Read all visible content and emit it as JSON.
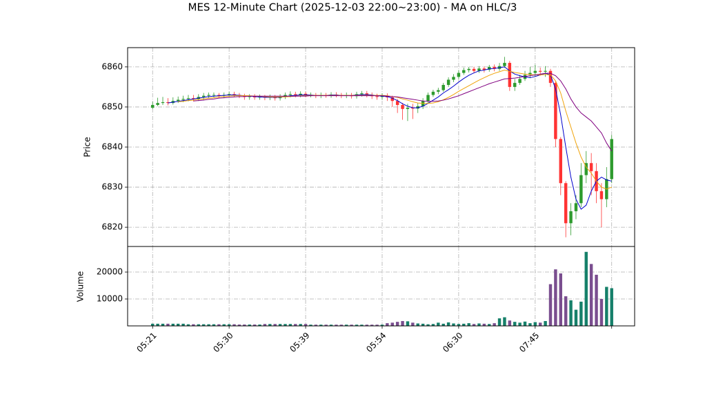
{
  "chart_data": [
    {
      "type": "candlestick",
      "title": "MES 12-Minute Chart (2025-12-03 22:00~23:00) - MA on HLC/3",
      "ylabel": "Price",
      "up_color": "#2e9b2e",
      "down_color": "#ff3333",
      "grid": true,
      "ylim": [
        6815.2,
        6864.8
      ],
      "yticks": [
        6820,
        6830,
        6840,
        6850,
        6860
      ],
      "open": [
        6849.8,
        6850.5,
        6851,
        6851.2,
        6851,
        6851.5,
        6851.8,
        6852,
        6852.2,
        6852,
        6852.5,
        6852.8,
        6853,
        6853,
        6852.8,
        6853,
        6853.2,
        6853,
        6852.8,
        6852.5,
        6852.6,
        6852.4,
        6852.5,
        6852.3,
        6852.5,
        6852.2,
        6852.6,
        6853,
        6853.2,
        6853,
        6853.3,
        6853,
        6853,
        6852.8,
        6853,
        6852.9,
        6853.1,
        6853,
        6852.8,
        6853,
        6852.7,
        6853.2,
        6853.4,
        6853,
        6852.7,
        6852.5,
        6852.8,
        6852.4,
        6851.5,
        6850.5,
        6849.5,
        6849.8,
        6849.6,
        6850.2,
        6851.5,
        6853,
        6853.8,
        6854.2,
        6855.5,
        6856.8,
        6857.5,
        6858.5,
        6859.2,
        6859.5,
        6859,
        6859.6,
        6859.3,
        6860,
        6859.5,
        6860.2,
        6861,
        6855,
        6856,
        6857,
        6858,
        6858.5,
        6859,
        6858.8,
        6859,
        6856,
        6842,
        6831,
        6821,
        6824,
        6826,
        6833,
        6836,
        6834,
        6829,
        6827,
        6832
      ],
      "high": [
        6851.3,
        6852.3,
        6852.5,
        6852.2,
        6852.4,
        6852.6,
        6852.8,
        6853,
        6853,
        6853.2,
        6853.5,
        6853.6,
        6853.6,
        6853.5,
        6853.6,
        6853.8,
        6853.8,
        6853.5,
        6853.3,
        6853.2,
        6853.2,
        6853.1,
        6853,
        6853.1,
        6853,
        6853.2,
        6853.6,
        6853.9,
        6853.8,
        6853.9,
        6853.8,
        6853.6,
        6853.5,
        6853.6,
        6853.5,
        6853.7,
        6853.7,
        6853.5,
        6853.6,
        6853.5,
        6853.8,
        6854,
        6854,
        6853.6,
        6853.3,
        6853.4,
        6853.4,
        6852.8,
        6852,
        6851,
        6850.8,
        6850.8,
        6851,
        6852.2,
        6853.6,
        6854.3,
        6854.8,
        6856,
        6857.4,
        6858.2,
        6859.2,
        6859.8,
        6860,
        6860,
        6860.2,
        6860.1,
        6860.5,
        6860.6,
        6861,
        6862.5,
        6861.5,
        6857,
        6858,
        6859,
        6860,
        6860.5,
        6859.8,
        6860.2,
        6859.5,
        6856.5,
        6842.5,
        6831.5,
        6826,
        6828,
        6836,
        6839,
        6838.5,
        6836,
        6831,
        6835,
        6843
      ],
      "low": [
        6849.5,
        6850.2,
        6850.5,
        6850.4,
        6850.6,
        6851,
        6851.2,
        6851.4,
        6851.4,
        6851.5,
        6851.8,
        6852.2,
        6852.4,
        6852.2,
        6852.2,
        6852.5,
        6852.4,
        6852.2,
        6851.8,
        6851.8,
        6851.8,
        6851.8,
        6851.7,
        6851.7,
        6851.6,
        6851.6,
        6852,
        6852.4,
        6852.4,
        6852.4,
        6852.4,
        6852.4,
        6852.2,
        6852.2,
        6852.3,
        6852.3,
        6852.4,
        6852.2,
        6852.2,
        6852.1,
        6852.1,
        6852.6,
        6852.4,
        6852,
        6851.8,
        6851.8,
        6851.5,
        6850,
        6848.5,
        6846.8,
        6846.5,
        6847,
        6848.5,
        6849.5,
        6851,
        6852.5,
        6853.2,
        6853.8,
        6855,
        6856.2,
        6857,
        6858,
        6858.6,
        6858.4,
        6858.5,
        6858.6,
        6858.8,
        6858.9,
        6859,
        6859.8,
        6854,
        6854,
        6855.5,
        6856.5,
        6857.2,
        6857.5,
        6857.8,
        6857.5,
        6855,
        6840,
        6828,
        6817.5,
        6818,
        6822,
        6825,
        6831,
        6828,
        6826,
        6820,
        6825,
        6831
      ],
      "close": [
        6850.5,
        6851,
        6851.2,
        6851,
        6851.5,
        6851.8,
        6852,
        6852.2,
        6852,
        6852.5,
        6852.8,
        6853,
        6853,
        6852.8,
        6853,
        6853.2,
        6853,
        6852.8,
        6852.5,
        6852.6,
        6852.4,
        6852.5,
        6852.3,
        6852.5,
        6852.2,
        6852.6,
        6853,
        6853.2,
        6853,
        6853.3,
        6853,
        6853,
        6852.8,
        6853,
        6852.9,
        6853.1,
        6853,
        6852.8,
        6853,
        6852.7,
        6853.2,
        6853.4,
        6853,
        6852.7,
        6852.5,
        6852.8,
        6852.4,
        6851.5,
        6850.5,
        6849.5,
        6849.8,
        6849.6,
        6850.2,
        6851.5,
        6853,
        6853.8,
        6854.2,
        6855.5,
        6856.8,
        6857.5,
        6858.5,
        6859.2,
        6859.5,
        6859,
        6859.6,
        6859.3,
        6860,
        6859.5,
        6860.2,
        6861,
        6855,
        6856,
        6857,
        6858,
        6858.5,
        6859,
        6858.8,
        6859,
        6856,
        6842,
        6831,
        6821,
        6824,
        6826,
        6833,
        6836,
        6834,
        6829,
        6827,
        6832,
        6842
      ],
      "lines": [
        {
          "color": "#0000cc",
          "values": [
            null,
            null,
            null,
            6851.0,
            6851.2,
            6851.4,
            6851.6,
            6851.8,
            6852.0,
            6852.2,
            6852.4,
            6852.6,
            6852.7,
            6852.8,
            6852.9,
            6853.0,
            6853.0,
            6852.9,
            6852.8,
            6852.7,
            6852.6,
            6852.5,
            6852.4,
            6852.4,
            6852.4,
            6852.4,
            6852.6,
            6852.8,
            6852.9,
            6853.0,
            6853.0,
            6853.0,
            6852.9,
            6852.9,
            6852.9,
            6853.0,
            6853.0,
            6852.9,
            6852.9,
            6852.9,
            6853.0,
            6853.1,
            6853.1,
            6853.0,
            6852.8,
            6852.7,
            6852.6,
            6852.2,
            6851.6,
            6850.8,
            6850.2,
            6849.8,
            6849.8,
            6850.2,
            6850.9,
            6851.7,
            6852.5,
            6853.5,
            6854.3,
            6855.2,
            6856.2,
            6857.1,
            6857.9,
            6858.5,
            6859.0,
            6859.2,
            6859.5,
            6859.6,
            6859.8,
            6860.0,
            6859.0,
            6858.2,
            6857.8,
            6857.5,
            6857.3,
            6857.6,
            6858.0,
            6858.4,
            6858.0,
            6854.5,
            6848.0,
            6840.0,
            6832.5,
            6827.0,
            6824.5,
            6825.5,
            6829.0,
            6831.5,
            6832.5,
            6831.8,
            6831.5
          ]
        },
        {
          "color": "#f0a30a",
          "values": [
            null,
            null,
            null,
            null,
            null,
            6851.3,
            6851.4,
            6851.6,
            6851.7,
            6851.9,
            6852.0,
            6852.2,
            6852.3,
            6852.5,
            6852.6,
            6852.7,
            6852.8,
            6852.8,
            6852.8,
            6852.8,
            6852.7,
            6852.7,
            6852.6,
            6852.5,
            6852.5,
            6852.5,
            6852.5,
            6852.6,
            6852.7,
            6852.8,
            6852.8,
            6852.9,
            6852.9,
            6852.9,
            6852.9,
            6852.9,
            6852.9,
            6852.9,
            6852.9,
            6852.9,
            6852.9,
            6852.9,
            6852.9,
            6852.9,
            6852.9,
            6852.9,
            6852.8,
            6852.6,
            6852.4,
            6852.0,
            6851.7,
            6851.3,
            6851.0,
            6850.9,
            6850.9,
            6851.0,
            6851.3,
            6851.8,
            6852.4,
            6853.1,
            6853.9,
            6854.6,
            6855.3,
            6856.0,
            6856.7,
            6857.3,
            6857.9,
            6858.4,
            6858.8,
            6859.2,
            6858.9,
            6858.6,
            6858.4,
            6858.2,
            6858.1,
            6858.0,
            6858.0,
            6858.1,
            6858.0,
            6856.5,
            6853.5,
            6849.0,
            6845.0,
            6841.0,
            6837.5,
            6835.0,
            6833.5,
            6831.5,
            6830.0,
            6829.5,
            6830.0
          ]
        },
        {
          "color": "#800080",
          "values": [
            null,
            null,
            null,
            null,
            null,
            null,
            null,
            null,
            6851.5,
            6851.6,
            6851.7,
            6851.9,
            6852.0,
            6852.2,
            6852.3,
            6852.4,
            6852.5,
            6852.6,
            6852.6,
            6852.7,
            6852.7,
            6852.7,
            6852.7,
            6852.7,
            6852.7,
            6852.7,
            6852.7,
            6852.7,
            6852.7,
            6852.7,
            6852.7,
            6852.8,
            6852.8,
            6852.8,
            6852.8,
            6852.8,
            6852.8,
            6852.8,
            6852.8,
            6852.8,
            6852.8,
            6852.8,
            6852.8,
            6852.8,
            6852.8,
            6852.8,
            6852.7,
            6852.6,
            6852.5,
            6852.3,
            6852.1,
            6851.9,
            6851.7,
            6851.5,
            6851.4,
            6851.4,
            6851.5,
            6851.7,
            6852.0,
            6852.4,
            6852.8,
            6853.3,
            6853.8,
            6854.3,
            6854.8,
            6855.3,
            6855.8,
            6856.2,
            6856.6,
            6857.0,
            6857.1,
            6857.2,
            6857.4,
            6857.6,
            6857.8,
            6858.0,
            6858.2,
            6858.4,
            6858.4,
            6857.8,
            6856.5,
            6854.5,
            6852.0,
            6850.0,
            6848.5,
            6847.5,
            6846.5,
            6845.0,
            6843.5,
            6841.0,
            6839.0
          ]
        }
      ]
    },
    {
      "type": "bar",
      "ylabel": "Volume",
      "up_color": "#16806a",
      "down_color": "#7a4e8f",
      "grid": true,
      "ylim": [
        0,
        29500
      ],
      "yticks": [
        10000,
        20000
      ],
      "xlim": [
        -4.9,
        94.5
      ],
      "xticks": [
        {
          "value": 0,
          "label": "05:21"
        },
        {
          "value": 15,
          "label": "05:30"
        },
        {
          "value": 30,
          "label": "05:39"
        },
        {
          "value": 45,
          "label": "05:54"
        },
        {
          "value": 60,
          "label": "06:30"
        },
        {
          "value": 75,
          "label": "07:45"
        },
        {
          "value": 90,
          "label": null
        }
      ],
      "values": [
        800,
        800,
        800,
        800,
        800,
        800,
        800,
        600,
        600,
        600,
        600,
        600,
        600,
        600,
        600,
        600,
        600,
        500,
        500,
        500,
        500,
        500,
        700,
        700,
        700,
        700,
        700,
        700,
        700,
        700,
        700,
        450,
        450,
        450,
        450,
        450,
        450,
        450,
        450,
        450,
        450,
        450,
        450,
        450,
        450,
        450,
        1000,
        1200,
        1500,
        1800,
        1700,
        1200,
        900,
        800,
        600,
        700,
        1200,
        800,
        1300,
        900,
        700,
        800,
        1000,
        700,
        900,
        800,
        700,
        1000,
        2800,
        3200,
        2000,
        1500,
        1200,
        1600,
        1000,
        1400,
        1200,
        1800,
        15500,
        21000,
        19500,
        11000,
        9500,
        6000,
        9000,
        27500,
        23000,
        19000,
        10000,
        14500,
        14000
      ]
    }
  ]
}
